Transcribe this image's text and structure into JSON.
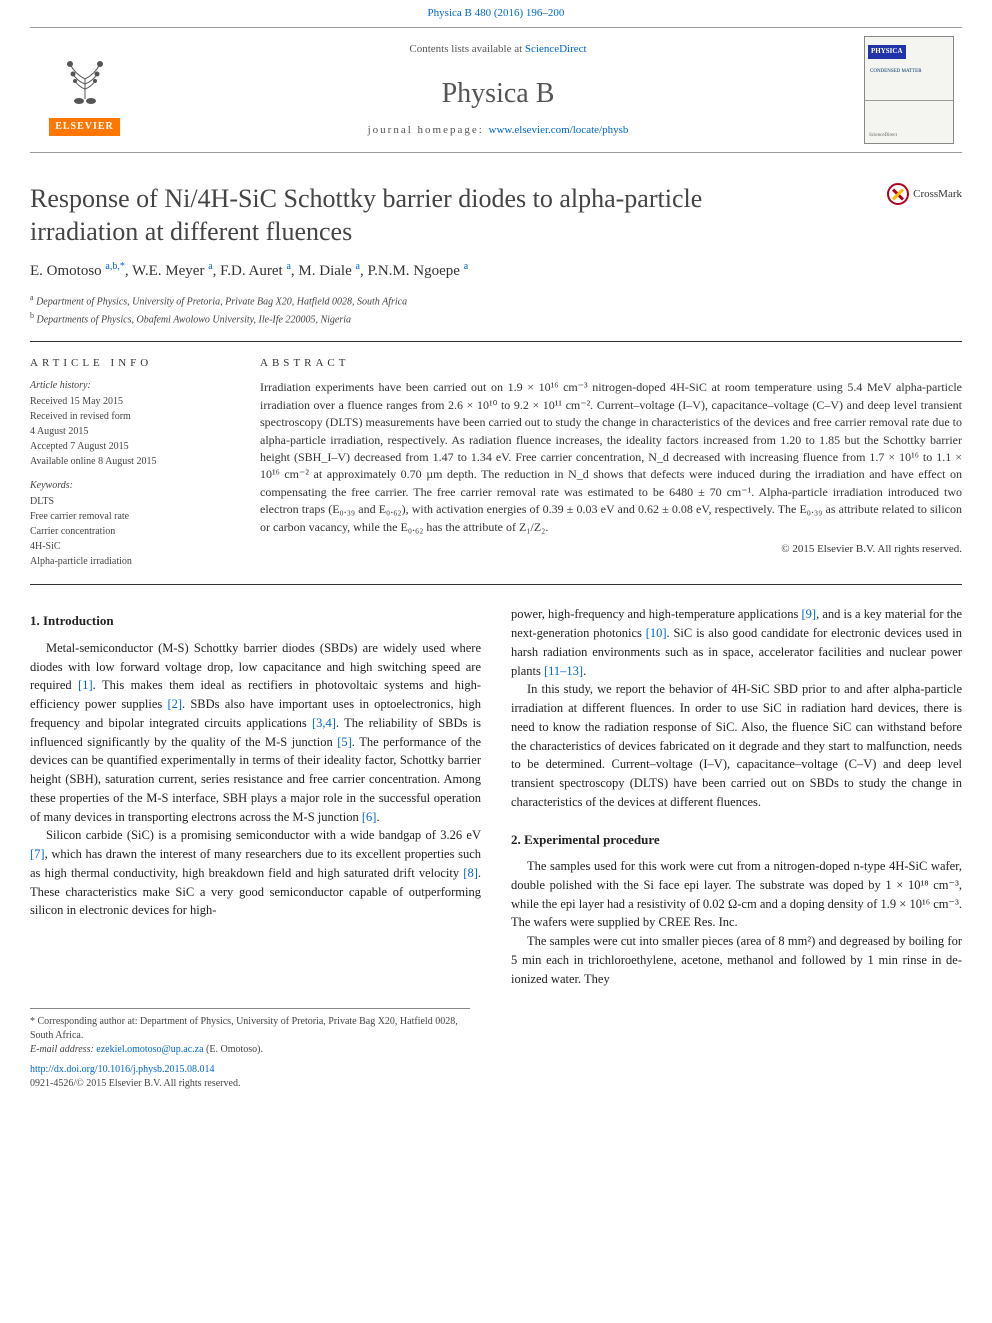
{
  "top_link": {
    "text": "Physica B 480 (2016) 196–200"
  },
  "masthead": {
    "elsevier_label": "ELSEVIER",
    "contents_prefix": "Contents lists available at ",
    "contents_link": "ScienceDirect",
    "journal": "Physica B",
    "homepage_prefix": "journal homepage: ",
    "homepage_url": "www.elsevier.com/locate/physb",
    "cover": {
      "band": "PHYSICA",
      "subtitle": "CONDENSED MATTER",
      "publisher": "ScienceDirect"
    }
  },
  "crossmark_label": "CrossMark",
  "title": "Response of Ni/4H-SiC Schottky barrier diodes to alpha-particle irradiation at different fluences",
  "authors_html": "E. Omotoso <sup>a,b,*</sup>, W.E. Meyer <sup>a</sup>, F.D. Auret <sup>a</sup>, M. Diale <sup>a</sup>, P.N.M. Ngoepe <sup>a</sup>",
  "affiliations": [
    {
      "sup": "a",
      "text": "Department of Physics, University of Pretoria, Private Bag X20, Hatfield 0028, South Africa"
    },
    {
      "sup": "b",
      "text": "Departments of Physics, Obafemi Awolowo University, Ile-Ife 220005, Nigeria"
    }
  ],
  "article_info": {
    "heading": "ARTICLE INFO",
    "history_label": "Article history:",
    "history": [
      "Received 15 May 2015",
      "Received in revised form",
      "4 August 2015",
      "Accepted 7 August 2015",
      "Available online 8 August 2015"
    ],
    "keywords_label": "Keywords:",
    "keywords": [
      "DLTS",
      "Free carrier removal rate",
      "Carrier concentration",
      "4H-SiC",
      "Alpha-particle irradiation"
    ]
  },
  "abstract": {
    "heading": "ABSTRACT",
    "text": "Irradiation experiments have been carried out on 1.9 × 10¹⁶ cm⁻³ nitrogen-doped 4H-SiC at room temperature using 5.4 MeV alpha-particle irradiation over a fluence ranges from 2.6 × 10¹⁰ to 9.2 × 10¹¹ cm⁻². Current–voltage (I–V), capacitance–voltage (C–V) and deep level transient spectroscopy (DLTS) measurements have been carried out to study the change in characteristics of the devices and free carrier removal rate due to alpha-particle irradiation, respectively. As radiation fluence increases, the ideality factors increased from 1.20 to 1.85 but the Schottky barrier height (SBH_I–V) decreased from 1.47 to 1.34 eV. Free carrier concentration, N_d decreased with increasing fluence from 1.7 × 10¹⁶ to 1.1 × 10¹⁶ cm⁻² at approximately 0.70 µm depth. The reduction in N_d shows that defects were induced during the irradiation and have effect on compensating the free carrier. The free carrier removal rate was estimated to be 6480 ± 70 cm⁻¹. Alpha-particle irradiation introduced two electron traps (E₀.₃₉ and E₀.₆₂), with activation energies of 0.39 ± 0.03 eV and 0.62 ± 0.08 eV, respectively. The E₀.₃₉ as attribute related to silicon or carbon vacancy, while the E₀.₆₂ has the attribute of Z₁/Z₂.",
    "copyright": "© 2015 Elsevier B.V. All rights reserved."
  },
  "sections": {
    "intro_heading": "1. Introduction",
    "intro_p1": "Metal-semiconductor (M-S) Schottky barrier diodes (SBDs) are widely used where diodes with low forward voltage drop, low capacitance and high switching speed are required [1]. This makes them ideal as rectifiers in photovoltaic systems and high-efficiency power supplies [2]. SBDs also have important uses in optoelectronics, high frequency and bipolar integrated circuits applications [3,4]. The reliability of SBDs is influenced significantly by the quality of the M-S junction [5]. The performance of the devices can be quantified experimentally in terms of their ideality factor, Schottky barrier height (SBH), saturation current, series resistance and free carrier concentration. Among these properties of the M-S interface, SBH plays a major role in the successful operation of many devices in transporting electrons across the M-S junction [6].",
    "intro_p2": "Silicon carbide (SiC) is a promising semiconductor with a wide bandgap of 3.26 eV [7], which has drawn the interest of many researchers due to its excellent properties such as high thermal conductivity, high breakdown field and high saturated drift velocity [8]. These characteristics make SiC a very good semiconductor capable of outperforming silicon in electronic devices for high-",
    "intro_p3": "power, high-frequency and high-temperature applications [9], and is a key material for the next-generation photonics [10]. SiC is also good candidate for electronic devices used in harsh radiation environments such as in space, accelerator facilities and nuclear power plants [11–13].",
    "intro_p4": "In this study, we report the behavior of 4H-SiC SBD prior to and after alpha-particle irradiation at different fluences. In order to use SiC in radiation hard devices, there is need to know the radiation response of SiC. Also, the fluence SiC can withstand before the characteristics of devices fabricated on it degrade and they start to malfunction, needs to be determined. Current–voltage (I–V), capacitance–voltage (C–V) and deep level transient spectroscopy (DLTS) have been carried out on SBDs to study the change in characteristics of the devices at different fluences.",
    "exp_heading": "2. Experimental procedure",
    "exp_p1": "The samples used for this work were cut from a nitrogen-doped n-type 4H-SiC wafer, double polished with the Si face epi layer. The substrate was doped by 1 × 10¹⁸ cm⁻³, while the epi layer had a resistivity of 0.02 Ω-cm and a doping density of 1.9 × 10¹⁶ cm⁻³. The wafers were supplied by CREE Res. Inc.",
    "exp_p2": "The samples were cut into smaller pieces (area of 8 mm²) and degreased by boiling for 5 min each in trichloroethylene, acetone, methanol and followed by 1 min rinse in de-ionized water. They"
  },
  "footnotes": {
    "corr": "* Corresponding author at: Department of Physics, University of Pretoria, Private Bag X20, Hatfield 0028, South Africa.",
    "email_label": "E-mail address: ",
    "email": "ezekiel.omotoso@up.ac.za",
    "email_who": " (E. Omotoso)."
  },
  "doi": {
    "url": "http://dx.doi.org/10.1016/j.physb.2015.08.014",
    "issn_line": "0921-4526/© 2015 Elsevier B.V. All rights reserved."
  },
  "colors": {
    "link": "#0066cc",
    "elsevier_orange": "#ff7700",
    "text": "#333333",
    "rule": "#333333"
  },
  "typography": {
    "body_pt": 12.5,
    "title_pt": 26,
    "journal_pt": 28,
    "abstract_pt": 12,
    "info_pt": 10
  }
}
